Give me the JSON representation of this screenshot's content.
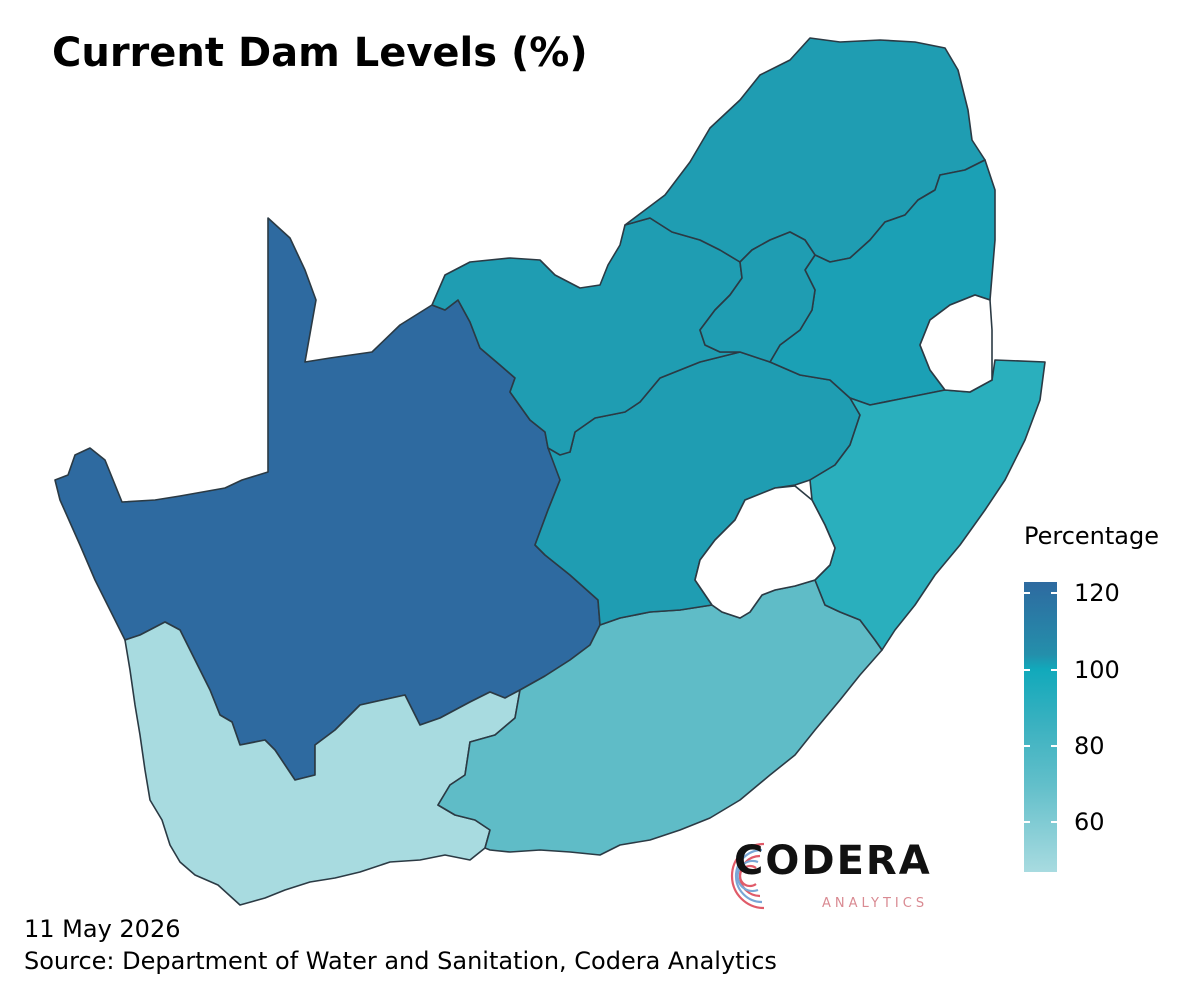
{
  "title": "Current Dam Levels (%)",
  "legend": {
    "title": "Percentage",
    "min": 47,
    "max": 123,
    "ticks": [
      120,
      100,
      80,
      60
    ],
    "colors": {
      "high": "#2e6aa0",
      "mid_high": "#248fab",
      "mid": "#11a9bb",
      "mid_low": "#3ab1c0",
      "low": "#62bfca",
      "lowest": "#a8dbe0"
    }
  },
  "footer": {
    "date": "11 May 2026",
    "source": "Source: Department of Water and Sanitation, Codera Analytics"
  },
  "logo": {
    "name": "CODERA",
    "sub": "ANALYTICS"
  },
  "map_data": {
    "type": "choropleth",
    "regions": [
      {
        "key": "northern-cape",
        "color": "#2e6aa0",
        "level": "high"
      },
      {
        "key": "western-cape",
        "color": "#a8dbe0",
        "level": "lowest"
      },
      {
        "key": "eastern-cape",
        "color": "#5fbcc7",
        "level": "low"
      },
      {
        "key": "free-state",
        "color": "#1f9db2",
        "level": "mid_high"
      },
      {
        "key": "north-west",
        "color": "#1f9db2",
        "level": "mid_high"
      },
      {
        "key": "limpopo",
        "color": "#1f9db2",
        "level": "mid_high"
      },
      {
        "key": "mpumalanga",
        "color": "#1ba0b5",
        "level": "mid_high"
      },
      {
        "key": "gauteng",
        "color": "#1f9db2",
        "level": "mid_high"
      },
      {
        "key": "kwazulu-natal",
        "color": "#2aafbd",
        "level": "mid"
      }
    ]
  }
}
